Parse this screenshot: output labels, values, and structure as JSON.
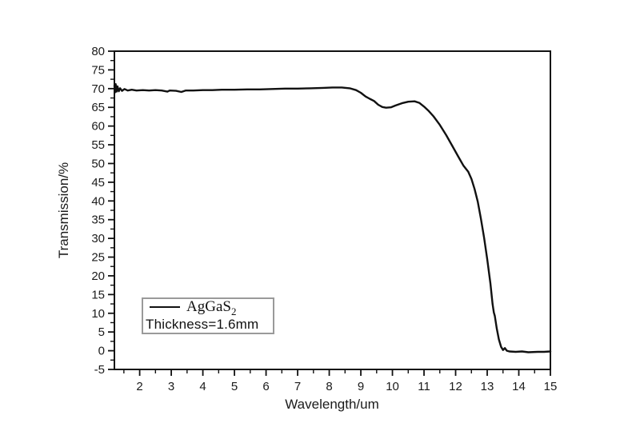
{
  "figure": {
    "background_color": "#ffffff",
    "axis_color": "#111111",
    "text_color": "#1b1b1b",
    "curve_color": "#111111",
    "legend_border_color": "#9a9a9a"
  },
  "chart_data": {
    "type": "line",
    "title": "",
    "xlabel": "Wavelength/um",
    "ylabel": "Transmission/%",
    "xlim": [
      1.2,
      15
    ],
    "ylim": [
      -5,
      80
    ],
    "grid": false,
    "x_major_ticks": [
      2,
      3,
      4,
      5,
      6,
      7,
      8,
      9,
      10,
      11,
      12,
      13,
      14,
      15
    ],
    "x_minor_ticks": [
      1.5,
      2.5,
      3.5,
      4.5,
      5.5,
      6.5,
      7.5,
      8.5,
      9.5,
      10.5,
      11.5,
      12.5,
      13.5,
      14.5
    ],
    "y_major_ticks": [
      -5,
      0,
      5,
      10,
      15,
      20,
      25,
      30,
      35,
      40,
      45,
      50,
      55,
      60,
      65,
      70,
      75,
      80
    ],
    "y_minor_ticks": [
      -2.5,
      2.5,
      7.5,
      12.5,
      17.5,
      22.5,
      27.5,
      32.5,
      37.5,
      42.5,
      47.5,
      52.5,
      57.5,
      62.5,
      67.5,
      72.5,
      77.5
    ],
    "legend": {
      "position": "bottom-left",
      "series_label": "AgGaS",
      "series_label_sub": "2",
      "thickness_label": "Thickness=1.6mm"
    },
    "series": [
      {
        "name": "AgGaS2 transmission",
        "points": [
          [
            1.2,
            70.8
          ],
          [
            1.22,
            69.0
          ],
          [
            1.24,
            71.2
          ],
          [
            1.27,
            69.2
          ],
          [
            1.3,
            70.6
          ],
          [
            1.34,
            69.3
          ],
          [
            1.38,
            70.1
          ],
          [
            1.44,
            69.4
          ],
          [
            1.52,
            69.9
          ],
          [
            1.62,
            69.5
          ],
          [
            1.75,
            69.7
          ],
          [
            1.9,
            69.5
          ],
          [
            2.1,
            69.6
          ],
          [
            2.3,
            69.5
          ],
          [
            2.5,
            69.6
          ],
          [
            2.7,
            69.5
          ],
          [
            2.88,
            69.2
          ],
          [
            2.95,
            69.5
          ],
          [
            3.15,
            69.4
          ],
          [
            3.32,
            69.1
          ],
          [
            3.45,
            69.5
          ],
          [
            3.7,
            69.5
          ],
          [
            4.0,
            69.6
          ],
          [
            4.3,
            69.6
          ],
          [
            4.6,
            69.7
          ],
          [
            5.0,
            69.7
          ],
          [
            5.4,
            69.8
          ],
          [
            5.8,
            69.8
          ],
          [
            6.2,
            69.9
          ],
          [
            6.6,
            70.0
          ],
          [
            7.0,
            70.0
          ],
          [
            7.4,
            70.1
          ],
          [
            7.8,
            70.2
          ],
          [
            8.1,
            70.3
          ],
          [
            8.4,
            70.3
          ],
          [
            8.65,
            70.1
          ],
          [
            8.85,
            69.6
          ],
          [
            9.0,
            68.9
          ],
          [
            9.15,
            67.9
          ],
          [
            9.28,
            67.3
          ],
          [
            9.42,
            66.7
          ],
          [
            9.55,
            65.7
          ],
          [
            9.68,
            65.1
          ],
          [
            9.8,
            64.9
          ],
          [
            9.95,
            65.0
          ],
          [
            10.1,
            65.5
          ],
          [
            10.3,
            66.1
          ],
          [
            10.5,
            66.5
          ],
          [
            10.7,
            66.6
          ],
          [
            10.85,
            66.2
          ],
          [
            11.0,
            65.2
          ],
          [
            11.15,
            64.0
          ],
          [
            11.3,
            62.6
          ],
          [
            11.5,
            60.3
          ],
          [
            11.7,
            57.6
          ],
          [
            11.9,
            54.6
          ],
          [
            12.1,
            51.6
          ],
          [
            12.25,
            49.4
          ],
          [
            12.4,
            47.8
          ],
          [
            12.5,
            45.9
          ],
          [
            12.6,
            43.2
          ],
          [
            12.7,
            39.8
          ],
          [
            12.8,
            35.3
          ],
          [
            12.9,
            30.2
          ],
          [
            13.0,
            24.5
          ],
          [
            13.1,
            18.0
          ],
          [
            13.17,
            12.5
          ],
          [
            13.21,
            10.2
          ],
          [
            13.24,
            9.3
          ],
          [
            13.3,
            6.0
          ],
          [
            13.37,
            3.0
          ],
          [
            13.44,
            1.0
          ],
          [
            13.5,
            0.2
          ],
          [
            13.56,
            0.7
          ],
          [
            13.62,
            0.0
          ],
          [
            13.7,
            -0.2
          ],
          [
            13.9,
            -0.3
          ],
          [
            14.1,
            -0.2
          ],
          [
            14.3,
            -0.4
          ],
          [
            14.6,
            -0.3
          ],
          [
            14.8,
            -0.3
          ],
          [
            15.0,
            -0.2
          ]
        ]
      }
    ]
  }
}
